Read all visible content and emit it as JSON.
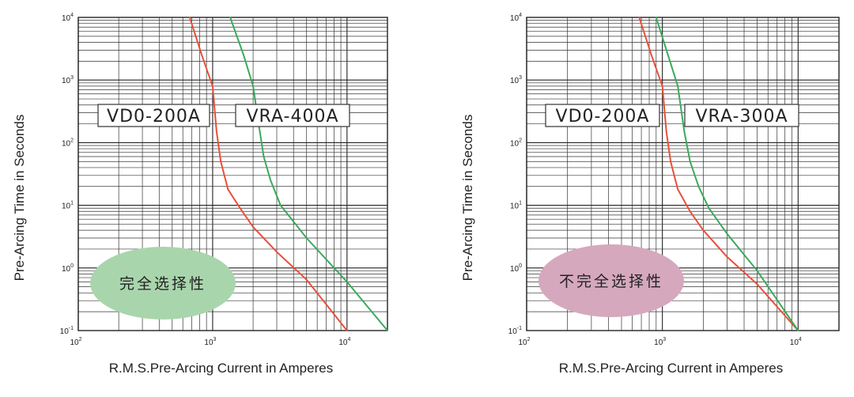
{
  "chart_data": [
    {
      "type": "line",
      "xscale": "log",
      "yscale": "log",
      "xlim": [
        100,
        20000
      ],
      "ylim": [
        0.1,
        10000
      ],
      "xlabel": "R.M.S.Pre-Arcing Current in Amperes",
      "ylabel": "Pre-Arcing Time in Seconds",
      "x_ticks": [
        {
          "base": "10",
          "exp": "2"
        },
        {
          "base": "10",
          "exp": "3"
        },
        {
          "base": "10",
          "exp": "4"
        }
      ],
      "y_ticks": [
        {
          "base": "10",
          "exp": "-1"
        },
        {
          "base": "10",
          "exp": "0"
        },
        {
          "base": "10",
          "exp": "1"
        },
        {
          "base": "10",
          "exp": "2"
        },
        {
          "base": "10",
          "exp": "3"
        },
        {
          "base": "10",
          "exp": "4"
        }
      ],
      "grid": true,
      "series": [
        {
          "name": "VD0-200A",
          "color": "#e8503a",
          "points": [
            [
              675,
              10000
            ],
            [
              830,
              2500
            ],
            [
              1000,
              800
            ],
            [
              1070,
              150
            ],
            [
              1150,
              50
            ],
            [
              1300,
              18
            ],
            [
              1600,
              9
            ],
            [
              2000,
              4.5
            ],
            [
              3000,
              1.8
            ],
            [
              5000,
              0.65
            ],
            [
              10000,
              0.1
            ]
          ]
        },
        {
          "name": "VRA-400A",
          "color": "#3aaa5c",
          "points": [
            [
              1350,
              10000
            ],
            [
              1700,
              2500
            ],
            [
              2000,
              800
            ],
            [
              2200,
              200
            ],
            [
              2400,
              60
            ],
            [
              2700,
              25
            ],
            [
              3200,
              10
            ],
            [
              5000,
              3
            ],
            [
              10000,
              0.6
            ],
            [
              20000,
              0.1
            ]
          ]
        }
      ],
      "badge": {
        "text": "完全选择性",
        "color": "#a9d5ac"
      }
    },
    {
      "type": "line",
      "xscale": "log",
      "yscale": "log",
      "xlim": [
        100,
        20000
      ],
      "ylim": [
        0.1,
        10000
      ],
      "xlabel": "R.M.S.Pre-Arcing Current in Amperes",
      "ylabel": "Pre-Arcing Time in Seconds",
      "x_ticks": [
        {
          "base": "10",
          "exp": "2"
        },
        {
          "base": "10",
          "exp": "3"
        },
        {
          "base": "10",
          "exp": "4"
        }
      ],
      "y_ticks": [
        {
          "base": "10",
          "exp": "-1"
        },
        {
          "base": "10",
          "exp": "0"
        },
        {
          "base": "10",
          "exp": "1"
        },
        {
          "base": "10",
          "exp": "2"
        },
        {
          "base": "10",
          "exp": "3"
        },
        {
          "base": "10",
          "exp": "4"
        }
      ],
      "grid": true,
      "series": [
        {
          "name": "VD0-200A",
          "color": "#e8503a",
          "points": [
            [
              675,
              10000
            ],
            [
              830,
              2500
            ],
            [
              1000,
              800
            ],
            [
              1070,
              150
            ],
            [
              1150,
              50
            ],
            [
              1300,
              18
            ],
            [
              1600,
              8
            ],
            [
              2000,
              4
            ],
            [
              3000,
              1.5
            ],
            [
              5000,
              0.55
            ],
            [
              10000,
              0.1
            ]
          ]
        },
        {
          "name": "VRA-300A",
          "color": "#3aaa5c",
          "points": [
            [
              900,
              10000
            ],
            [
              1100,
              2500
            ],
            [
              1300,
              800
            ],
            [
              1450,
              150
            ],
            [
              1600,
              50
            ],
            [
              1850,
              20
            ],
            [
              2200,
              9
            ],
            [
              3000,
              3.5
            ],
            [
              5000,
              0.9
            ],
            [
              10000,
              0.1
            ]
          ]
        }
      ],
      "badge": {
        "text": "不完全选择性",
        "color": "#d6a8bd"
      }
    }
  ]
}
